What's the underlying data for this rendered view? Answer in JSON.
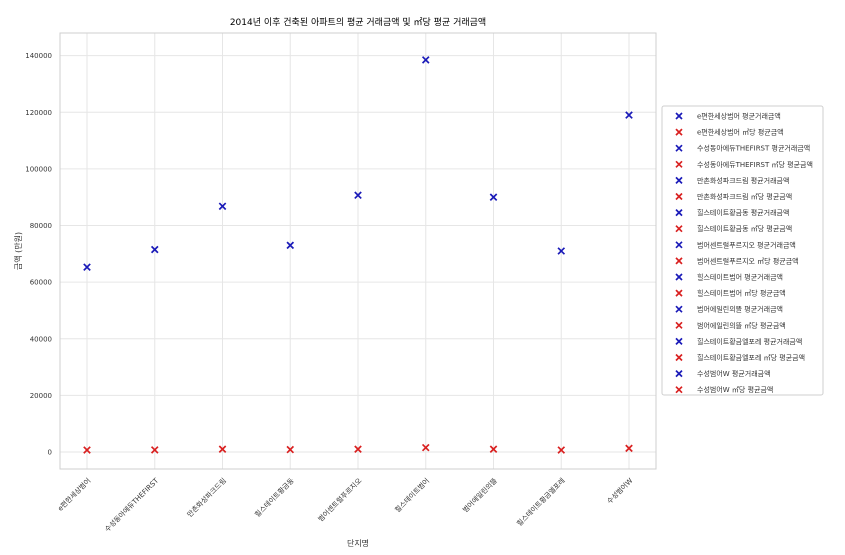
{
  "chart_data": {
    "type": "scatter",
    "title": "2014년 이후 건축된 아파트의 평균 거래금액 및 ㎡당 평균 거래금액",
    "xlabel": "단지명",
    "ylabel": "금액 (만원)",
    "categories": [
      "e편한세상범어",
      "수성동아에듀THEFIRST",
      "만촌화성파크드림",
      "힐스테이트황금동",
      "범어센트럴푸르지오",
      "힐스테이트범어",
      "범어에일린의뜰",
      "힐스테이트황금엘포레",
      "수성범어W"
    ],
    "ylim": [
      -6000,
      148000
    ],
    "yticks": [
      0,
      20000,
      40000,
      60000,
      80000,
      100000,
      120000,
      140000
    ],
    "ytick_labels": [
      "0",
      "20000",
      "40000",
      "60000",
      "80000",
      "100000",
      "120000",
      "140000"
    ],
    "grid": true,
    "legend_position": "right",
    "marker": "x",
    "colors": {
      "avg": "#1a1ab8",
      "per_m2": "#d92020"
    },
    "series": [
      {
        "name": "e편한세상범어 평균거래금액",
        "category": "e편한세상범어",
        "kind": "avg",
        "value": 65300
      },
      {
        "name": "e편한세상범어 ㎡당 평균금액",
        "category": "e편한세상범어",
        "kind": "per_m2",
        "value": 700
      },
      {
        "name": "수성동아에듀THEFIRST 평균거래금액",
        "category": "수성동아에듀THEFIRST",
        "kind": "avg",
        "value": 71500
      },
      {
        "name": "수성동아에듀THEFIRST ㎡당 평균금액",
        "category": "수성동아에듀THEFIRST",
        "kind": "per_m2",
        "value": 750
      },
      {
        "name": "만촌화성파크드림 평균거래금액",
        "category": "만촌화성파크드림",
        "kind": "avg",
        "value": 86800
      },
      {
        "name": "만촌화성파크드림 ㎡당 평균금액",
        "category": "만촌화성파크드림",
        "kind": "per_m2",
        "value": 1000
      },
      {
        "name": "힐스테이트황금동 평균거래금액",
        "category": "힐스테이트황금동",
        "kind": "avg",
        "value": 73000
      },
      {
        "name": "힐스테이트황금동 ㎡당 평균금액",
        "category": "힐스테이트황금동",
        "kind": "per_m2",
        "value": 850
      },
      {
        "name": "범어센트럴푸르지오 평균거래금액",
        "category": "범어센트럴푸르지오",
        "kind": "avg",
        "value": 90700
      },
      {
        "name": "범어센트럴푸르지오 ㎡당 평균금액",
        "category": "범어센트럴푸르지오",
        "kind": "per_m2",
        "value": 1000
      },
      {
        "name": "힐스테이트범어 평균거래금액",
        "category": "힐스테이트범어",
        "kind": "avg",
        "value": 138500
      },
      {
        "name": "힐스테이트범어 ㎡당 평균금액",
        "category": "힐스테이트범어",
        "kind": "per_m2",
        "value": 1550
      },
      {
        "name": "범어에일린의뜰 평균거래금액",
        "category": "범어에일린의뜰",
        "kind": "avg",
        "value": 90000
      },
      {
        "name": "범어에일린의뜰 ㎡당 평균금액",
        "category": "범어에일린의뜰",
        "kind": "per_m2",
        "value": 1000
      },
      {
        "name": "힐스테이트황금엘포레 평균거래금액",
        "category": "힐스테이트황금엘포레",
        "kind": "avg",
        "value": 71000
      },
      {
        "name": "힐스테이트황금엘포레 ㎡당 평균금액",
        "category": "힐스테이트황금엘포레",
        "kind": "per_m2",
        "value": 700
      },
      {
        "name": "수성범어W 평균거래금액",
        "category": "수성범어W",
        "kind": "avg",
        "value": 119000
      },
      {
        "name": "수성범어W ㎡당 평균금액",
        "category": "수성범어W",
        "kind": "per_m2",
        "value": 1300
      }
    ]
  }
}
